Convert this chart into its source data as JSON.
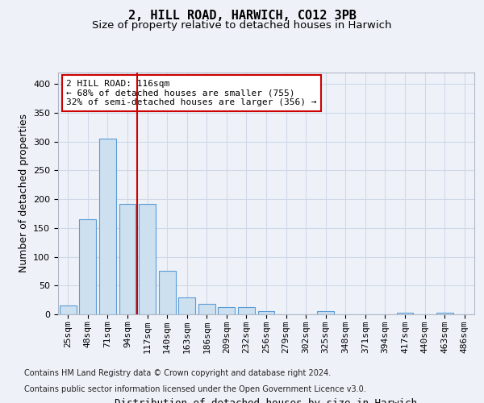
{
  "title_line1": "2, HILL ROAD, HARWICH, CO12 3PB",
  "title_line2": "Size of property relative to detached houses in Harwich",
  "xlabel": "Distribution of detached houses by size in Harwich",
  "ylabel": "Number of detached properties",
  "categories": [
    "25sqm",
    "48sqm",
    "71sqm",
    "94sqm",
    "117sqm",
    "140sqm",
    "163sqm",
    "186sqm",
    "209sqm",
    "232sqm",
    "256sqm",
    "279sqm",
    "302sqm",
    "325sqm",
    "348sqm",
    "371sqm",
    "394sqm",
    "417sqm",
    "440sqm",
    "463sqm",
    "486sqm"
  ],
  "values": [
    15,
    165,
    305,
    192,
    192,
    75,
    30,
    18,
    12,
    12,
    6,
    0,
    0,
    6,
    0,
    0,
    0,
    3,
    0,
    3,
    0
  ],
  "bar_color": "#cce0f0",
  "bar_edge_color": "#5b9bd5",
  "property_line_color": "#cc0000",
  "annotation_text": "2 HILL ROAD: 116sqm\n← 68% of detached houses are smaller (755)\n32% of semi-detached houses are larger (356) →",
  "annotation_box_color": "#ffffff",
  "annotation_box_edge": "#cc0000",
  "ylim": [
    0,
    420
  ],
  "yticks": [
    0,
    50,
    100,
    150,
    200,
    250,
    300,
    350,
    400
  ],
  "grid_color": "#d0d8e8",
  "bg_color": "#eef2f8",
  "plot_bg_color": "#eef2f8",
  "footer_line1": "Contains HM Land Registry data © Crown copyright and database right 2024.",
  "footer_line2": "Contains public sector information licensed under the Open Government Licence v3.0.",
  "title_fontsize": 11,
  "subtitle_fontsize": 9.5,
  "ylabel_fontsize": 9,
  "xlabel_fontsize": 9,
  "tick_fontsize": 8,
  "footer_fontsize": 7,
  "ann_fontsize": 8
}
